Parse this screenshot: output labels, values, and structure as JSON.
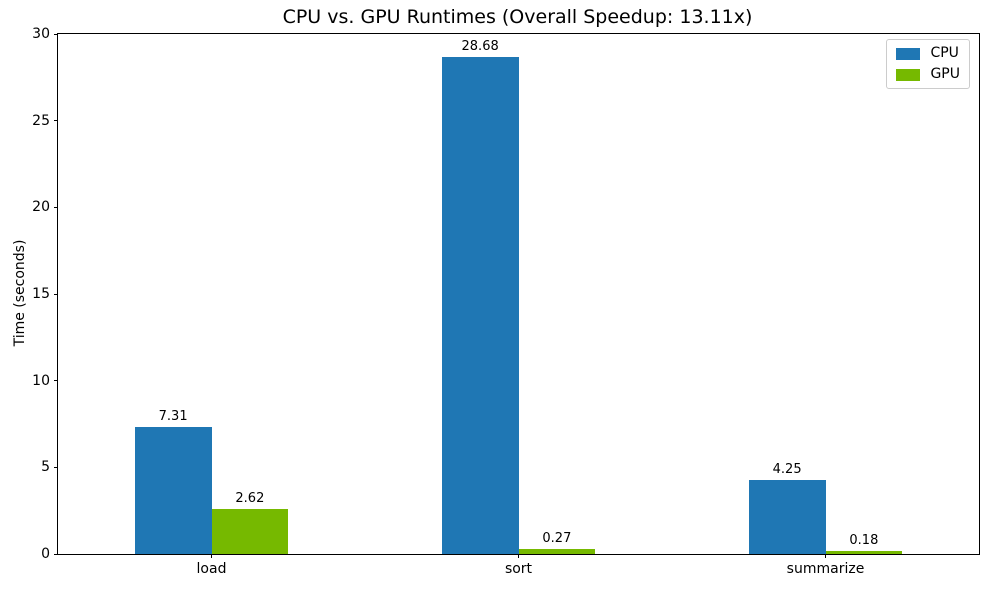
{
  "chart_data": {
    "type": "bar",
    "title": "CPU vs. GPU Runtimes (Overall Speedup: 13.11x)",
    "xlabel": "",
    "ylabel": "Time (seconds)",
    "categories": [
      "load",
      "sort",
      "summarize"
    ],
    "series": [
      {
        "name": "CPU",
        "color": "#1f77b4",
        "values": [
          7.31,
          28.68,
          4.25
        ],
        "labels": [
          "7.31",
          "28.68",
          "4.25"
        ]
      },
      {
        "name": "GPU",
        "color": "#76b900",
        "values": [
          2.62,
          0.27,
          0.18
        ],
        "labels": [
          "2.62",
          "0.27",
          "0.18"
        ]
      }
    ],
    "ylim": [
      0,
      30
    ],
    "yticks": [
      0,
      5,
      10,
      15,
      20,
      25,
      30
    ],
    "grid": false,
    "legend_position": "upper right",
    "bar_group_width_fraction": 0.25
  }
}
